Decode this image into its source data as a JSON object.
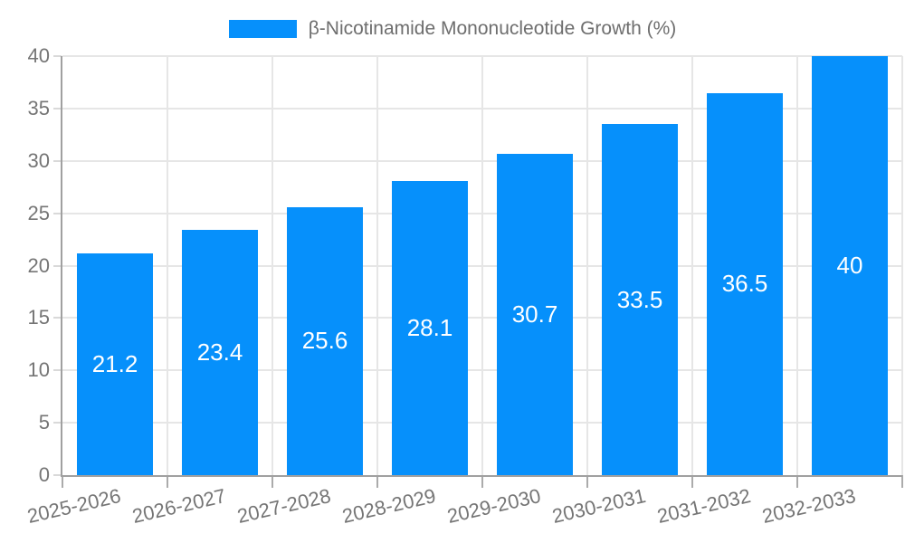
{
  "chart_data": {
    "type": "bar",
    "title": "",
    "legend": {
      "label": "β-Nicotinamide Mononucleotide Growth (%)",
      "position": "top"
    },
    "categories": [
      "2025-2026",
      "2026-2027",
      "2027-2028",
      "2028-2029",
      "2029-2030",
      "2030-2031",
      "2031-2032",
      "2032-2033"
    ],
    "series": [
      {
        "name": "β-Nicotinamide Mononucleotide Growth (%)",
        "values": [
          21.2,
          23.4,
          25.6,
          28.1,
          30.7,
          33.5,
          36.5,
          40
        ],
        "value_labels": [
          "21.2",
          "23.4",
          "25.6",
          "28.1",
          "30.7",
          "33.5",
          "36.5",
          "40"
        ]
      }
    ],
    "xlabel": "",
    "ylabel": "",
    "ylim": [
      0,
      40
    ],
    "yticks": [
      0,
      5,
      10,
      15,
      20,
      25,
      30,
      35,
      40
    ],
    "grid": true,
    "x_label_rotation_deg": -13,
    "colors": {
      "bar": "#0690fb",
      "grid": "#e6e6e6",
      "axis": "#a0a0a0",
      "y_tick_mark": "#d9d9d9",
      "x_tick_mark": "#ababab",
      "tick_text": "#757575",
      "legend_text": "#6e6e6e",
      "value_label_text": "#ffffff",
      "background": "#ffffff"
    }
  }
}
